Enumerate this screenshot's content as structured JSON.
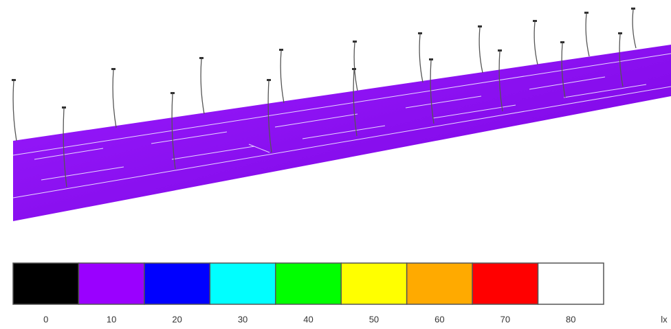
{
  "legend": {
    "swatches": [
      {
        "value": 0,
        "color": "#000000"
      },
      {
        "value": 10,
        "color": "#9a00ff"
      },
      {
        "value": 20,
        "color": "#0000ff"
      },
      {
        "value": 30,
        "color": "#00ffff"
      },
      {
        "value": 40,
        "color": "#00ff00"
      },
      {
        "value": 50,
        "color": "#ffff00"
      },
      {
        "value": 60,
        "color": "#ffaa00"
      },
      {
        "value": 70,
        "color": "#ff0000"
      },
      {
        "value": 80,
        "color": "#ffffff"
      }
    ],
    "unit": "lx"
  }
}
